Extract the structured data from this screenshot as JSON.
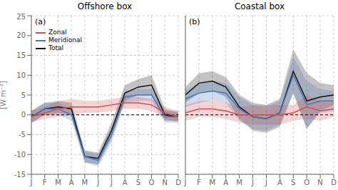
{
  "chart_data": [
    {
      "type": "line",
      "title": "Offshore box",
      "annotations": [
        "(a)"
      ],
      "ylabel": "[W m⁻²]",
      "categories": [
        "J",
        "F",
        "M",
        "A",
        "M",
        "J",
        "J",
        "A",
        "S",
        "O",
        "N",
        "D"
      ],
      "series": [
        {
          "name": "Zonal",
          "color": "#D05050",
          "values": [
            -0.5,
            0.5,
            1.5,
            2.0,
            2.0,
            2.0,
            2.5,
            3.0,
            3.0,
            2.5,
            0.5,
            -0.5
          ],
          "lower": [
            -2,
            -1,
            -0.5,
            0,
            0.5,
            0.5,
            1,
            1.5,
            1.5,
            1,
            -1,
            -2
          ],
          "upper": [
            1,
            2,
            3.5,
            4,
            3.5,
            3.5,
            4,
            4.5,
            4.5,
            4,
            2,
            1
          ]
        },
        {
          "name": "Meridional",
          "color": "#4878B8",
          "values": [
            -0.5,
            1.5,
            1.5,
            0.0,
            -10.5,
            -11.5,
            -5.0,
            4.5,
            5.0,
            5.0,
            -0.5,
            -0.5
          ],
          "lower": [
            -2,
            0,
            0,
            -1.5,
            -12,
            -13,
            -7,
            3,
            3.5,
            3.5,
            -2,
            -2
          ],
          "upper": [
            1,
            3,
            3,
            1.5,
            -9,
            -10,
            -3,
            6,
            6.5,
            6.5,
            1,
            1
          ]
        },
        {
          "name": "Total",
          "color": "#111111",
          "values": [
            -0.5,
            1.5,
            2.0,
            1.5,
            -10.5,
            -11.0,
            -4.0,
            5.5,
            7.0,
            7.5,
            0.0,
            -0.5
          ],
          "lower": [
            -2,
            0,
            0.5,
            0,
            -12,
            -12.5,
            -6,
            3.5,
            5,
            5,
            -1.5,
            -1.5
          ],
          "upper": [
            1,
            3,
            3.5,
            3,
            -9,
            -9.5,
            -2,
            7.5,
            9,
            10,
            1.5,
            0.5
          ]
        }
      ],
      "hlines": [
        0
      ],
      "ylim": [
        -15,
        25
      ],
      "yticks": [
        -15,
        -10,
        -5,
        0,
        5,
        10,
        15,
        20,
        25
      ],
      "grid": true,
      "legend": "upper left"
    },
    {
      "type": "line",
      "title": "Coastal box",
      "annotations": [
        "(b)"
      ],
      "categories": [
        "J",
        "F",
        "M",
        "A",
        "M",
        "J",
        "J",
        "A",
        "S",
        "O",
        "N",
        "D"
      ],
      "series": [
        {
          "name": "Zonal",
          "color": "#D05050",
          "values": [
            0.5,
            1.5,
            1.5,
            1.0,
            0.0,
            0.0,
            0.0,
            0.0,
            0.5,
            2.0,
            1.0,
            1.5
          ],
          "lower": [
            -1.5,
            -0.5,
            -0.5,
            -1,
            -2,
            -2.5,
            -2.5,
            -2.5,
            -1.5,
            -1,
            -1.5,
            -0.5
          ],
          "upper": [
            2.5,
            3.5,
            3.5,
            3,
            2,
            2.5,
            2.5,
            2.5,
            2.5,
            5,
            3.5,
            3.5
          ]
        },
        {
          "name": "Meridional",
          "color": "#4878B8",
          "values": [
            4.0,
            5.5,
            6.0,
            5.5,
            1.5,
            -0.5,
            -1.0,
            0.5,
            10.0,
            2.5,
            3.5,
            3.5
          ],
          "lower": [
            2,
            3,
            3.5,
            3,
            -1.5,
            -3.5,
            -4,
            -2.5,
            5.5,
            -3.5,
            0.5,
            1
          ],
          "upper": [
            6,
            8,
            8.5,
            8,
            4.5,
            2.5,
            2,
            3.5,
            14.5,
            8.5,
            6.5,
            6
          ]
        },
        {
          "name": "Total",
          "color": "#111111",
          "values": [
            5.0,
            8.0,
            8.5,
            7.0,
            2.0,
            -0.5,
            -1.0,
            0.5,
            11.0,
            3.5,
            4.5,
            5.0
          ],
          "lower": [
            3,
            5.5,
            6,
            4.5,
            -1,
            -4,
            -4.5,
            -3,
            5.5,
            -3.5,
            1,
            2.5
          ],
          "upper": [
            7,
            10.5,
            11,
            9.5,
            5,
            3,
            2.5,
            4,
            16.5,
            10.5,
            8,
            7.5
          ]
        }
      ],
      "hlines": [
        0
      ],
      "ylim": [
        -15,
        25
      ],
      "yticks": [
        -15,
        -10,
        -5,
        0,
        5,
        10,
        15,
        20,
        25
      ],
      "grid": true,
      "tick_labels": "x"
    }
  ]
}
